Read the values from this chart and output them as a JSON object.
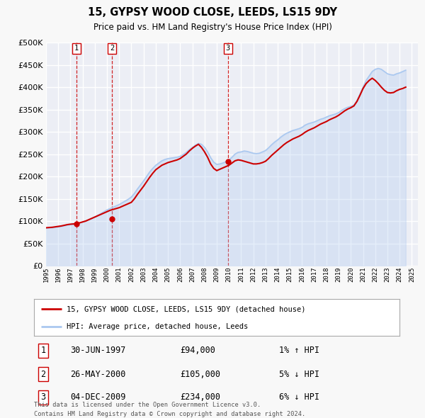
{
  "title": "15, GYPSY WOOD CLOSE, LEEDS, LS15 9DY",
  "subtitle": "Price paid vs. HM Land Registry's House Price Index (HPI)",
  "ylim": [
    0,
    500000
  ],
  "yticks": [
    0,
    50000,
    100000,
    150000,
    200000,
    250000,
    300000,
    350000,
    400000,
    450000,
    500000
  ],
  "ytick_labels": [
    "£0",
    "£50K",
    "£100K",
    "£150K",
    "£200K",
    "£250K",
    "£300K",
    "£350K",
    "£400K",
    "£450K",
    "£500K"
  ],
  "xlim_start": 1995.0,
  "xlim_end": 2025.5,
  "xticks": [
    1995,
    1996,
    1997,
    1998,
    1999,
    2000,
    2001,
    2002,
    2003,
    2004,
    2005,
    2006,
    2007,
    2008,
    2009,
    2010,
    2011,
    2012,
    2013,
    2014,
    2015,
    2016,
    2017,
    2018,
    2019,
    2020,
    2021,
    2022,
    2023,
    2024,
    2025
  ],
  "background_color": "#f8f8f8",
  "plot_bg_color": "#eceef5",
  "grid_color": "#ffffff",
  "hpi_color": "#aac8f0",
  "price_color": "#cc0000",
  "sale_marker_color": "#cc0000",
  "vline_color": "#cc0000",
  "legend_label_price": "15, GYPSY WOOD CLOSE, LEEDS, LS15 9DY (detached house)",
  "legend_label_hpi": "HPI: Average price, detached house, Leeds",
  "sales": [
    {
      "label": "1",
      "date": 1997.5,
      "price": 94000,
      "hpi_pct": "1% ↑ HPI",
      "date_str": "30-JUN-1997",
      "price_str": "£94,000"
    },
    {
      "label": "2",
      "date": 2000.4,
      "price": 105000,
      "hpi_pct": "5% ↓ HPI",
      "date_str": "26-MAY-2000",
      "price_str": "£105,000"
    },
    {
      "label": "3",
      "date": 2009.92,
      "price": 234000,
      "hpi_pct": "6% ↓ HPI",
      "date_str": "04-DEC-2009",
      "price_str": "£234,000"
    }
  ],
  "footnote1": "Contains HM Land Registry data © Crown copyright and database right 2024.",
  "footnote2": "This data is licensed under the Open Government Licence v3.0.",
  "hpi_data_x": [
    1995.0,
    1995.25,
    1995.5,
    1995.75,
    1996.0,
    1996.25,
    1996.5,
    1996.75,
    1997.0,
    1997.25,
    1997.5,
    1997.75,
    1998.0,
    1998.25,
    1998.5,
    1998.75,
    1999.0,
    1999.25,
    1999.5,
    1999.75,
    2000.0,
    2000.25,
    2000.5,
    2000.75,
    2001.0,
    2001.25,
    2001.5,
    2001.75,
    2002.0,
    2002.25,
    2002.5,
    2002.75,
    2003.0,
    2003.25,
    2003.5,
    2003.75,
    2004.0,
    2004.25,
    2004.5,
    2004.75,
    2005.0,
    2005.25,
    2005.5,
    2005.75,
    2006.0,
    2006.25,
    2006.5,
    2006.75,
    2007.0,
    2007.25,
    2007.5,
    2007.75,
    2008.0,
    2008.25,
    2008.5,
    2008.75,
    2009.0,
    2009.25,
    2009.5,
    2009.75,
    2010.0,
    2010.25,
    2010.5,
    2010.75,
    2011.0,
    2011.25,
    2011.5,
    2011.75,
    2012.0,
    2012.25,
    2012.5,
    2012.75,
    2013.0,
    2013.25,
    2013.5,
    2013.75,
    2014.0,
    2014.25,
    2014.5,
    2014.75,
    2015.0,
    2015.25,
    2015.5,
    2015.75,
    2016.0,
    2016.25,
    2016.5,
    2016.75,
    2017.0,
    2017.25,
    2017.5,
    2017.75,
    2018.0,
    2018.25,
    2018.5,
    2018.75,
    2019.0,
    2019.25,
    2019.5,
    2019.75,
    2020.0,
    2020.25,
    2020.5,
    2020.75,
    2021.0,
    2021.25,
    2021.5,
    2021.75,
    2022.0,
    2022.25,
    2022.5,
    2022.75,
    2023.0,
    2023.25,
    2023.5,
    2023.75,
    2024.0,
    2024.25,
    2024.5
  ],
  "hpi_data_y": [
    84000,
    84500,
    85000,
    86000,
    87000,
    88000,
    89500,
    91000,
    92000,
    93000,
    94000,
    96000,
    98000,
    100000,
    103000,
    106000,
    109000,
    113000,
    117000,
    121000,
    125000,
    128000,
    131000,
    134000,
    137000,
    141000,
    145000,
    149000,
    154000,
    162000,
    172000,
    181000,
    190000,
    200000,
    210000,
    218000,
    225000,
    230000,
    235000,
    238000,
    240000,
    241000,
    242000,
    243000,
    245000,
    249000,
    254000,
    260000,
    265000,
    270000,
    274000,
    272000,
    265000,
    255000,
    242000,
    232000,
    227000,
    228000,
    230000,
    233000,
    237000,
    243000,
    250000,
    254000,
    255000,
    257000,
    256000,
    254000,
    252000,
    251000,
    252000,
    255000,
    258000,
    264000,
    271000,
    277000,
    282000,
    288000,
    293000,
    297000,
    300000,
    303000,
    305000,
    307000,
    310000,
    315000,
    318000,
    320000,
    322000,
    325000,
    328000,
    330000,
    333000,
    336000,
    338000,
    340000,
    343000,
    348000,
    352000,
    355000,
    357000,
    360000,
    370000,
    385000,
    400000,
    415000,
    425000,
    435000,
    440000,
    442000,
    440000,
    435000,
    430000,
    428000,
    427000,
    430000,
    432000,
    435000,
    438000
  ],
  "price_data_x": [
    1995.0,
    1995.25,
    1995.5,
    1995.75,
    1996.0,
    1996.25,
    1996.5,
    1996.75,
    1997.0,
    1997.25,
    1997.5,
    1997.75,
    1998.0,
    1998.25,
    1998.5,
    1998.75,
    1999.0,
    1999.25,
    1999.5,
    1999.75,
    2000.0,
    2000.25,
    2000.5,
    2000.75,
    2001.0,
    2001.25,
    2001.5,
    2001.75,
    2002.0,
    2002.25,
    2002.5,
    2002.75,
    2003.0,
    2003.25,
    2003.5,
    2003.75,
    2004.0,
    2004.25,
    2004.5,
    2004.75,
    2005.0,
    2005.25,
    2005.5,
    2005.75,
    2006.0,
    2006.25,
    2006.5,
    2006.75,
    2007.0,
    2007.25,
    2007.5,
    2007.75,
    2008.0,
    2008.25,
    2008.5,
    2008.75,
    2009.0,
    2009.25,
    2009.5,
    2009.75,
    2010.0,
    2010.25,
    2010.5,
    2010.75,
    2011.0,
    2011.25,
    2011.5,
    2011.75,
    2012.0,
    2012.25,
    2012.5,
    2012.75,
    2013.0,
    2013.25,
    2013.5,
    2013.75,
    2014.0,
    2014.25,
    2014.5,
    2014.75,
    2015.0,
    2015.25,
    2015.5,
    2015.75,
    2016.0,
    2016.25,
    2016.5,
    2016.75,
    2017.0,
    2017.25,
    2017.5,
    2017.75,
    2018.0,
    2018.25,
    2018.5,
    2018.75,
    2019.0,
    2019.25,
    2019.5,
    2019.75,
    2020.0,
    2020.25,
    2020.5,
    2020.75,
    2021.0,
    2021.25,
    2021.5,
    2021.75,
    2022.0,
    2022.25,
    2022.5,
    2022.75,
    2023.0,
    2023.25,
    2023.5,
    2023.75,
    2024.0,
    2024.25,
    2024.5
  ],
  "price_data_y": [
    85000,
    85500,
    86000,
    87000,
    88000,
    89000,
    90500,
    92000,
    93000,
    93500,
    94000,
    96000,
    98000,
    100000,
    103000,
    106000,
    109000,
    112000,
    115000,
    118000,
    121000,
    124000,
    126000,
    128000,
    130000,
    133000,
    136000,
    139000,
    142000,
    150000,
    160000,
    169000,
    178000,
    188000,
    198000,
    207000,
    215000,
    220000,
    225000,
    228000,
    231000,
    233000,
    235000,
    237000,
    240000,
    245000,
    250000,
    257000,
    263000,
    268000,
    272000,
    265000,
    255000,
    243000,
    228000,
    218000,
    213000,
    216000,
    219000,
    222000,
    225000,
    230000,
    235000,
    237000,
    236000,
    234000,
    232000,
    230000,
    228000,
    228000,
    229000,
    231000,
    234000,
    240000,
    247000,
    253000,
    259000,
    265000,
    271000,
    276000,
    280000,
    284000,
    287000,
    290000,
    294000,
    299000,
    303000,
    306000,
    309000,
    313000,
    317000,
    320000,
    323000,
    327000,
    330000,
    333000,
    337000,
    342000,
    347000,
    351000,
    354000,
    358000,
    368000,
    382000,
    397000,
    408000,
    415000,
    420000,
    415000,
    408000,
    400000,
    393000,
    388000,
    387000,
    388000,
    392000,
    395000,
    397000,
    400000
  ]
}
